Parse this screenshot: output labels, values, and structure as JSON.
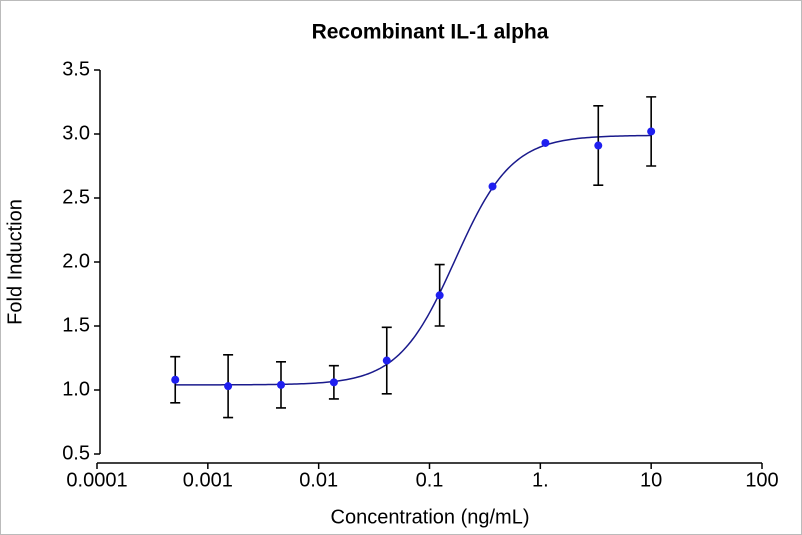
{
  "chart_data": {
    "type": "scatter",
    "title": "Recombinant IL-1 alpha",
    "x_label": "Concentration (ng/mL)",
    "y_label": "Fold Induction",
    "x_scale": "log",
    "xlim": [
      0.0001,
      100
    ],
    "xticks": [
      0.0001,
      0.001,
      0.01,
      0.1,
      {
        "value": 1,
        "label": "1."
      },
      10,
      100
    ],
    "ylim": [
      0.5,
      3.5
    ],
    "yticks": [
      0.5,
      {
        "value": 1,
        "label": "1.0"
      },
      1.5,
      {
        "value": 2,
        "label": "2.0"
      },
      2.5,
      {
        "value": 3,
        "label": "3.0"
      },
      3.5
    ],
    "series": [
      {
        "name": "IL-1 alpha",
        "color": "#1f1ff0",
        "x": [
          0.000508,
          0.001524,
          0.004572,
          0.01372,
          0.04115,
          0.1235,
          0.3704,
          1.111,
          3.333,
          10
        ],
        "values": [
          1.08,
          1.03,
          1.04,
          1.06,
          1.23,
          1.74,
          2.59,
          2.93,
          2.91,
          3.02
        ],
        "errors": [
          0.18,
          0.245,
          0.18,
          0.13,
          0.26,
          0.24,
          null,
          null,
          0.31,
          0.27
        ]
      }
    ],
    "fit_curve": {
      "color": "#1a1a8c",
      "bottom": 1.04,
      "top": 2.99,
      "ec50": 0.17,
      "hill": 1.7
    }
  }
}
